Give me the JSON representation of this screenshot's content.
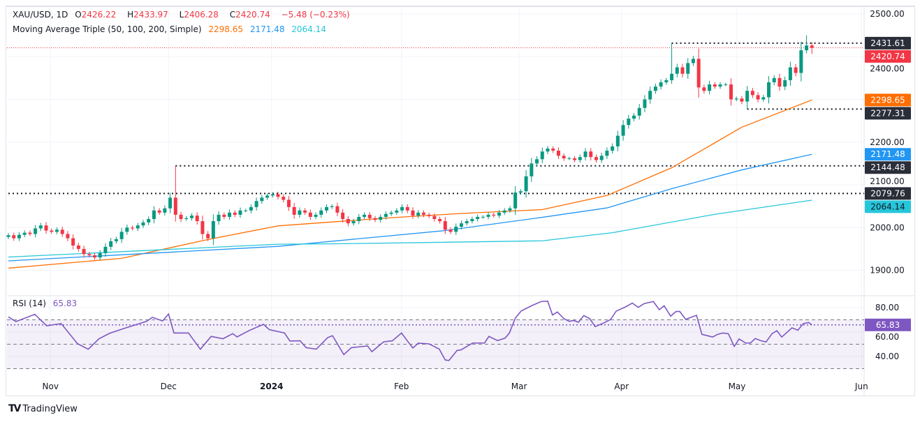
{
  "header": {
    "symbol": "XAU/USD, 1D",
    "o_label": "O",
    "open": "2426.22",
    "h_label": "H",
    "high": "2433.97",
    "l_label": "L",
    "low": "2406.28",
    "c_label": "C",
    "close": "2420.74",
    "change": "−5.48 (−0.23%)"
  },
  "ma_legend": {
    "title": "Moving Average Triple (50, 100, 200, Simple)",
    "ma50": "2298.65",
    "ma100": "2171.48",
    "ma200": "2064.14"
  },
  "rsi_legend": {
    "title": "RSI (14)",
    "value": "65.83"
  },
  "footer": {
    "brand": "TradingView"
  },
  "colors": {
    "up": "#089981",
    "down": "#F23645",
    "ma50": "#FF6D00",
    "ma100": "#2196F3",
    "ma200": "#26C6DA",
    "rsi": "#7E57C2",
    "tag_dark": "#2a2e39"
  },
  "chart_data": [
    {
      "type": "candlestick",
      "ylim": [
        1860,
        2510
      ],
      "price_ticks": [
        "2500.00",
        "2400.00",
        "2200.00",
        "2100.00",
        "2000.00",
        "1900.00"
      ],
      "time_ticks": [
        {
          "label": "Nov",
          "bar": 7.8
        },
        {
          "label": "Dec",
          "bar": 29.7
        },
        {
          "label": "2024",
          "bar": 48.8,
          "bold": true
        },
        {
          "label": "Feb",
          "bar": 72.9
        },
        {
          "label": "Mar",
          "bar": 94.7
        },
        {
          "label": "Apr",
          "bar": 113.7
        },
        {
          "label": "May",
          "bar": 135.1
        },
        {
          "label": "Jun",
          "bar": 158.2
        }
      ],
      "first_open": 1978,
      "closes": [
        1982,
        1975,
        1983,
        1988,
        1985,
        1998,
        2005,
        1993,
        1990,
        1995,
        1985,
        1975,
        1958,
        1950,
        1938,
        1935,
        1930,
        1940,
        1955,
        1968,
        1973,
        1990,
        2000,
        1998,
        2005,
        2012,
        2020,
        2040,
        2035,
        2045,
        2070,
        2030,
        2020,
        2022,
        2028,
        2015,
        1985,
        1975,
        2015,
        2030,
        2025,
        2035,
        2030,
        2040,
        2040,
        2048,
        2062,
        2070,
        2075,
        2078,
        2072,
        2065,
        2048,
        2030,
        2040,
        2035,
        2025,
        2030,
        2040,
        2048,
        2050,
        2035,
        2020,
        2010,
        2015,
        2025,
        2030,
        2022,
        2018,
        2025,
        2032,
        2035,
        2040,
        2048,
        2040,
        2028,
        2035,
        2030,
        2027,
        2020,
        2015,
        1995,
        1990,
        2002,
        2010,
        2015,
        2020,
        2025,
        2025,
        2030,
        2028,
        2035,
        2040,
        2045,
        2082,
        2085,
        2120,
        2150,
        2160,
        2178,
        2185,
        2180,
        2168,
        2162,
        2162,
        2158,
        2165,
        2178,
        2165,
        2158,
        2168,
        2180,
        2190,
        2215,
        2240,
        2255,
        2262,
        2280,
        2300,
        2320,
        2330,
        2340,
        2345,
        2360,
        2375,
        2360,
        2385,
        2395,
        2328,
        2320,
        2335,
        2330,
        2335,
        2335,
        2300,
        2302,
        2295,
        2320,
        2310,
        2300,
        2305,
        2340,
        2350,
        2330,
        2345,
        2375,
        2362,
        2415,
        2426.22,
        2420.74
      ],
      "wick_overrides": [
        {
          "bar": 31,
          "high": 2144.48
        },
        {
          "bar": 123,
          "high": 2431.61
        },
        {
          "bar": 137,
          "low": 2277.31
        },
        {
          "bar": 148,
          "high": 2450
        },
        {
          "bar": 149,
          "high": 2433.97,
          "low": 2406.28
        }
      ],
      "moving_averages": [
        {
          "name": "MA 50",
          "key": "ma50",
          "points": [
            [
              0,
              1905
            ],
            [
              21,
              1928
            ],
            [
              37,
              1972
            ],
            [
              50,
              2004
            ],
            [
              71,
              2023
            ],
            [
              84,
              2033
            ],
            [
              99,
              2042
            ],
            [
              111,
              2075
            ],
            [
              123,
              2140
            ],
            [
              136,
              2235
            ],
            [
              149,
              2298.65
            ]
          ]
        },
        {
          "name": "MA 100",
          "key": "ma100",
          "points": [
            [
              0,
              1922
            ],
            [
              50,
              1956
            ],
            [
              81,
              1993
            ],
            [
              99,
              2024
            ],
            [
              111,
              2046
            ],
            [
              123,
              2091
            ],
            [
              136,
              2135
            ],
            [
              149,
              2171.48
            ]
          ]
        },
        {
          "name": "MA 200",
          "key": "ma200",
          "points": [
            [
              0,
              1931
            ],
            [
              50,
              1961
            ],
            [
              61,
              1962
            ],
            [
              99,
              1969
            ],
            [
              112,
              1988
            ],
            [
              131,
              2031
            ],
            [
              149,
              2064.14
            ]
          ]
        }
      ],
      "levels": [
        {
          "value": 2431.61,
          "from_bar": 123,
          "label": "2431.61"
        },
        {
          "value": 2277.31,
          "from_bar": 137,
          "label": "2277.31"
        },
        {
          "value": 2144.48,
          "from_bar": 31,
          "label": "2144.48"
        },
        {
          "value": 2079.76,
          "from_bar": 0,
          "label": "2079.76"
        }
      ],
      "price_tags": [
        {
          "value": 2431.61,
          "label": "2431.61",
          "color": "#2a2e39"
        },
        {
          "value": 2420.74,
          "label": "2420.74",
          "color": "#F23645"
        },
        {
          "value": 2298.65,
          "label": "2298.65",
          "color": "#FF6D00"
        },
        {
          "value": 2277.31,
          "label": "2277.31",
          "color": "#2a2e39"
        },
        {
          "value": 2171.48,
          "label": "2171.48",
          "color": "#2196F3"
        },
        {
          "value": 2144.48,
          "label": "2144.48",
          "color": "#2a2e39"
        },
        {
          "value": 2079.76,
          "label": "2079.76",
          "color": "#2a2e39"
        },
        {
          "value": 2064.14,
          "label": "2064.14",
          "color": "#26C6DA",
          "dark_text": true
        }
      ],
      "last_price": 2420.74
    },
    {
      "type": "line",
      "title": "RSI (14)",
      "ylim": [
        27,
        92
      ],
      "ticks": [
        "80.00",
        "60.00",
        "40.00"
      ],
      "bands": {
        "upper": 70,
        "middle": 50,
        "lower": 30
      },
      "last": 65.83,
      "points": [
        [
          0,
          72.4
        ],
        [
          1.4,
          68.6
        ],
        [
          4.9,
          74.5
        ],
        [
          7.1,
          65.1
        ],
        [
          9.8,
          66.9
        ],
        [
          12.8,
          50.5
        ],
        [
          14.8,
          45.9
        ],
        [
          16.8,
          54.5
        ],
        [
          18.8,
          59
        ],
        [
          21.8,
          63.4
        ],
        [
          25.6,
          68.7
        ],
        [
          26.7,
          72
        ],
        [
          28.6,
          69.1
        ],
        [
          29.7,
          74.8
        ],
        [
          30.7,
          59.2
        ],
        [
          33.4,
          59.2
        ],
        [
          35.6,
          45.9
        ],
        [
          37.6,
          56.4
        ],
        [
          39.8,
          54.5
        ],
        [
          41.6,
          58.7
        ],
        [
          42.4,
          56
        ],
        [
          44.6,
          61.1
        ],
        [
          47.3,
          66.3
        ],
        [
          48.4,
          61.9
        ],
        [
          51.2,
          59.2
        ],
        [
          52.2,
          52.6
        ],
        [
          54.1,
          52.8
        ],
        [
          55.2,
          47.2
        ],
        [
          57.1,
          46
        ],
        [
          59.2,
          55.4
        ],
        [
          60.1,
          57
        ],
        [
          62.2,
          41.5
        ],
        [
          63.6,
          47.2
        ],
        [
          66.6,
          48.6
        ],
        [
          67.4,
          43.9
        ],
        [
          69.6,
          52
        ],
        [
          71.2,
          52.8
        ],
        [
          72.9,
          59.2
        ],
        [
          74,
          52.6
        ],
        [
          75,
          46.9
        ],
        [
          76,
          50.9
        ],
        [
          78,
          50.3
        ],
        [
          79.9,
          46
        ],
        [
          81,
          37.1
        ],
        [
          81.7,
          36.7
        ],
        [
          83.2,
          44.9
        ],
        [
          83.9,
          45.3
        ],
        [
          86.1,
          51
        ],
        [
          88.3,
          51
        ],
        [
          89.1,
          56.4
        ],
        [
          90.7,
          53
        ],
        [
          92.1,
          55
        ],
        [
          92.9,
          59.2
        ],
        [
          94,
          71.4
        ],
        [
          95.1,
          77.3
        ],
        [
          97,
          81.5
        ],
        [
          98.8,
          85
        ],
        [
          100,
          85.3
        ],
        [
          100.9,
          73.9
        ],
        [
          101.8,
          76.4
        ],
        [
          103,
          71
        ],
        [
          104,
          68.7
        ],
        [
          104.8,
          69.5
        ],
        [
          105.7,
          68
        ],
        [
          106.7,
          73.5
        ],
        [
          107.8,
          71
        ],
        [
          108.8,
          64.4
        ],
        [
          110.5,
          67.6
        ],
        [
          111.7,
          70.4
        ],
        [
          112.7,
          77.1
        ],
        [
          114.4,
          80.5
        ],
        [
          115.7,
          83.7
        ],
        [
          116.8,
          80.2
        ],
        [
          117.9,
          83.3
        ],
        [
          119.6,
          85
        ],
        [
          120.7,
          78.3
        ],
        [
          121.6,
          81.5
        ],
        [
          122.8,
          73
        ],
        [
          123.8,
          76.8
        ],
        [
          124.5,
          76.8
        ],
        [
          125.6,
          70.4
        ],
        [
          127.6,
          73.7
        ],
        [
          128.6,
          58.1
        ],
        [
          130.6,
          55.9
        ],
        [
          131.5,
          58.1
        ],
        [
          132.5,
          59.2
        ],
        [
          133.5,
          58.6
        ],
        [
          134.6,
          48.2
        ],
        [
          135.5,
          54.3
        ],
        [
          136.7,
          51
        ],
        [
          137.6,
          51
        ],
        [
          138.5,
          54.7
        ],
        [
          139.6,
          52.8
        ],
        [
          140.5,
          51.9
        ],
        [
          141.6,
          58.6
        ],
        [
          142.5,
          61.1
        ],
        [
          143.4,
          55.9
        ],
        [
          145.3,
          63.4
        ],
        [
          146.4,
          61.5
        ],
        [
          147.4,
          66.9
        ],
        [
          148.4,
          67.8
        ],
        [
          149,
          65.83
        ]
      ]
    }
  ]
}
